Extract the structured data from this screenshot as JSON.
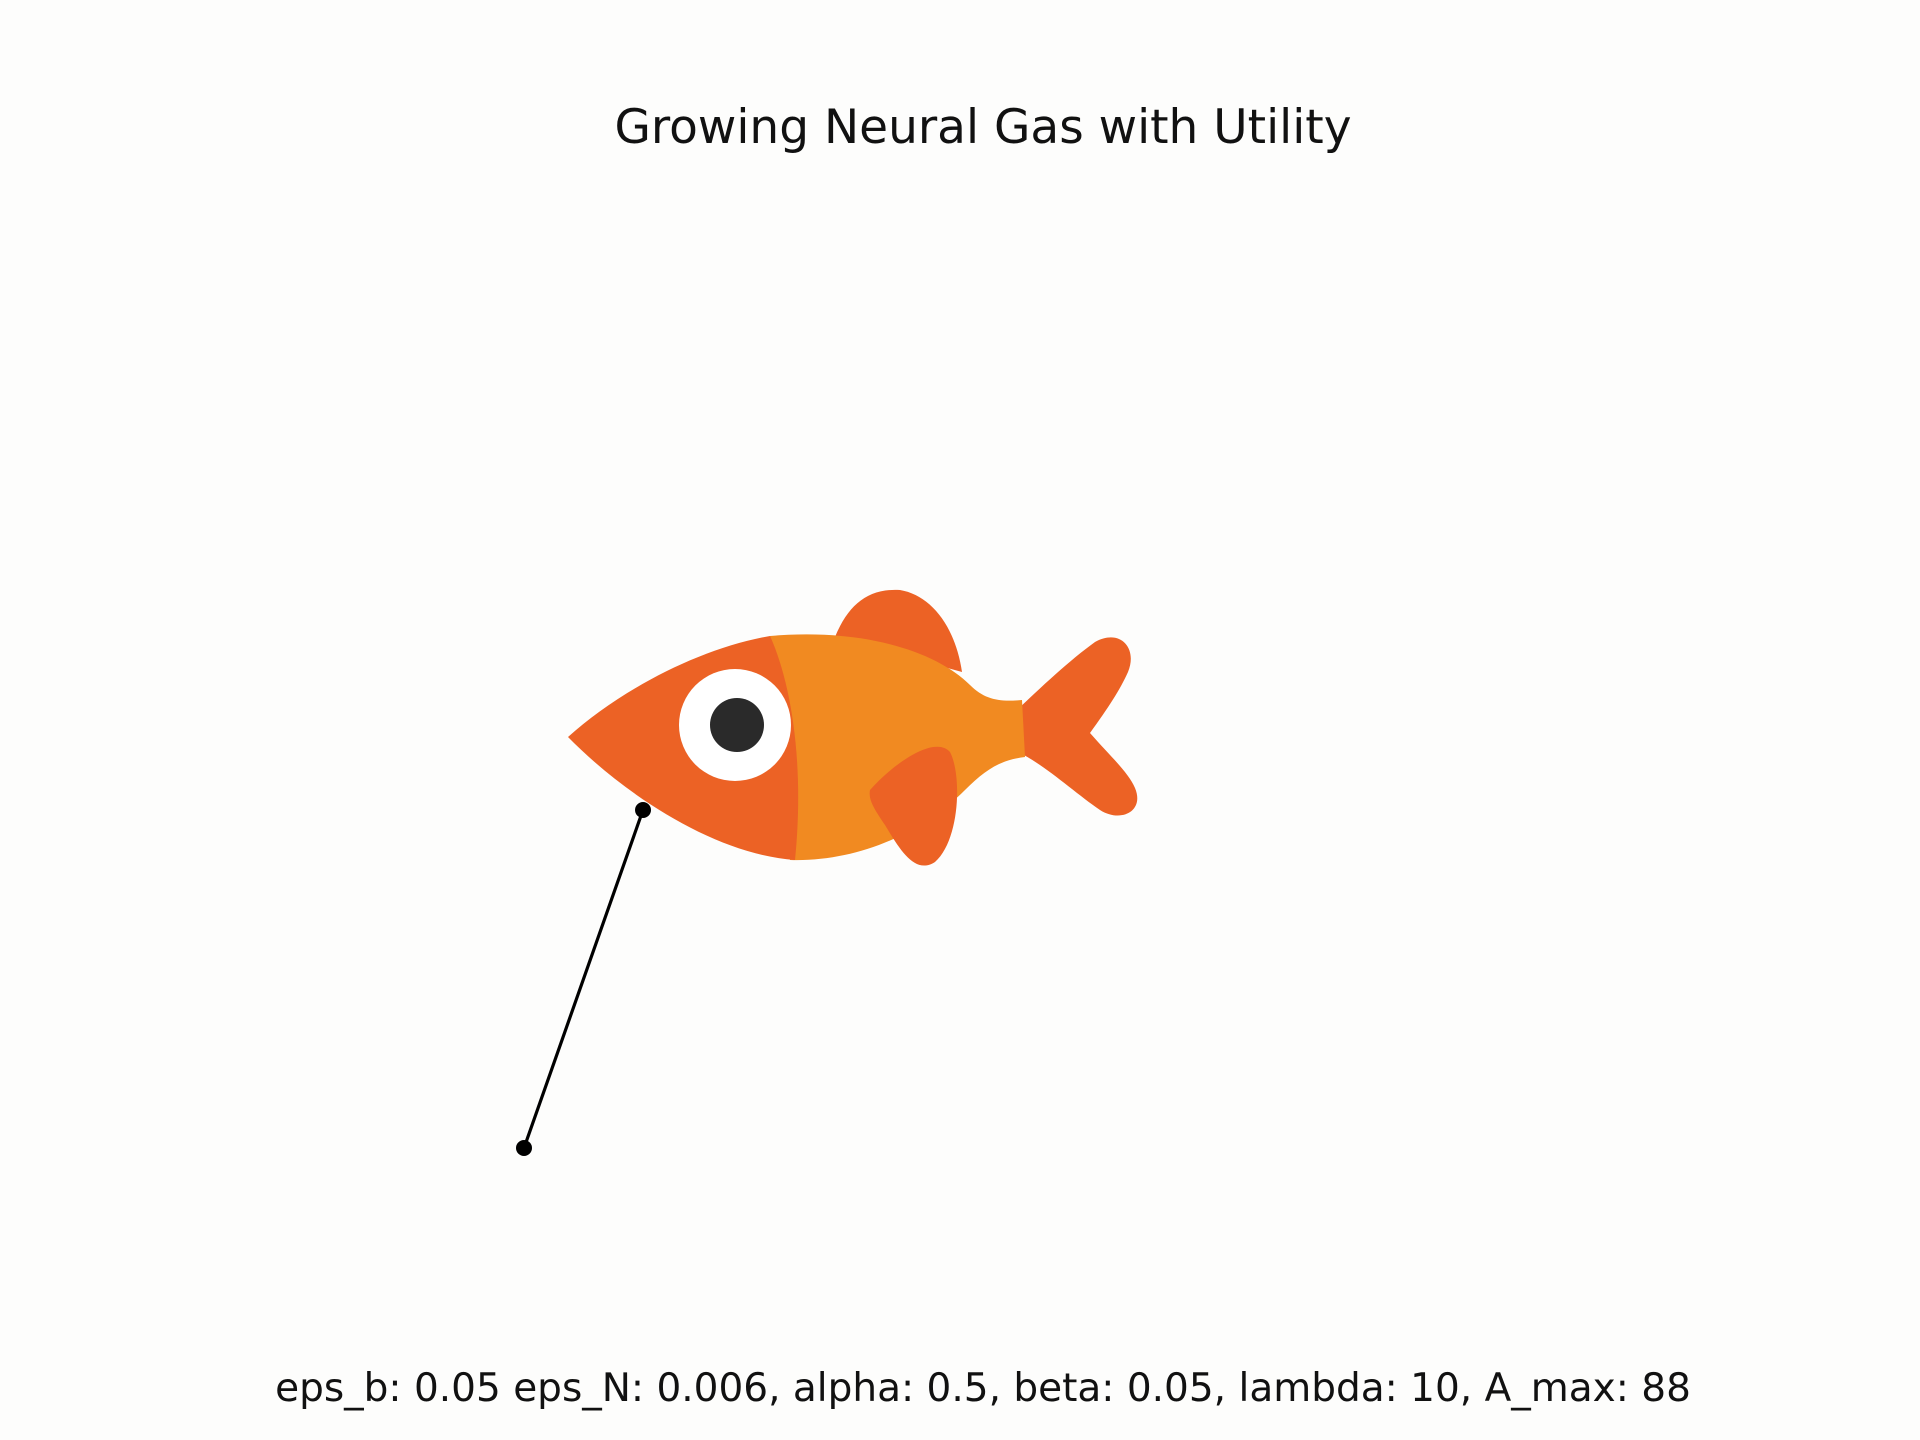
{
  "figure": {
    "title": "Growing Neural Gas with Utility",
    "parameters_text": "eps_b: 0.05 eps_N: 0.006, alpha: 0.5, beta: 0.05, lambda: 10, A_max: 88",
    "image_subject": "fish-icon"
  },
  "colors": {
    "background": "#fdfdfc",
    "fish_dark_orange": "#ec6225",
    "fish_light_orange": "#f18a21",
    "eye_white": "#ffffff",
    "pupil": "#2a2a2a",
    "network": "#000000"
  }
}
